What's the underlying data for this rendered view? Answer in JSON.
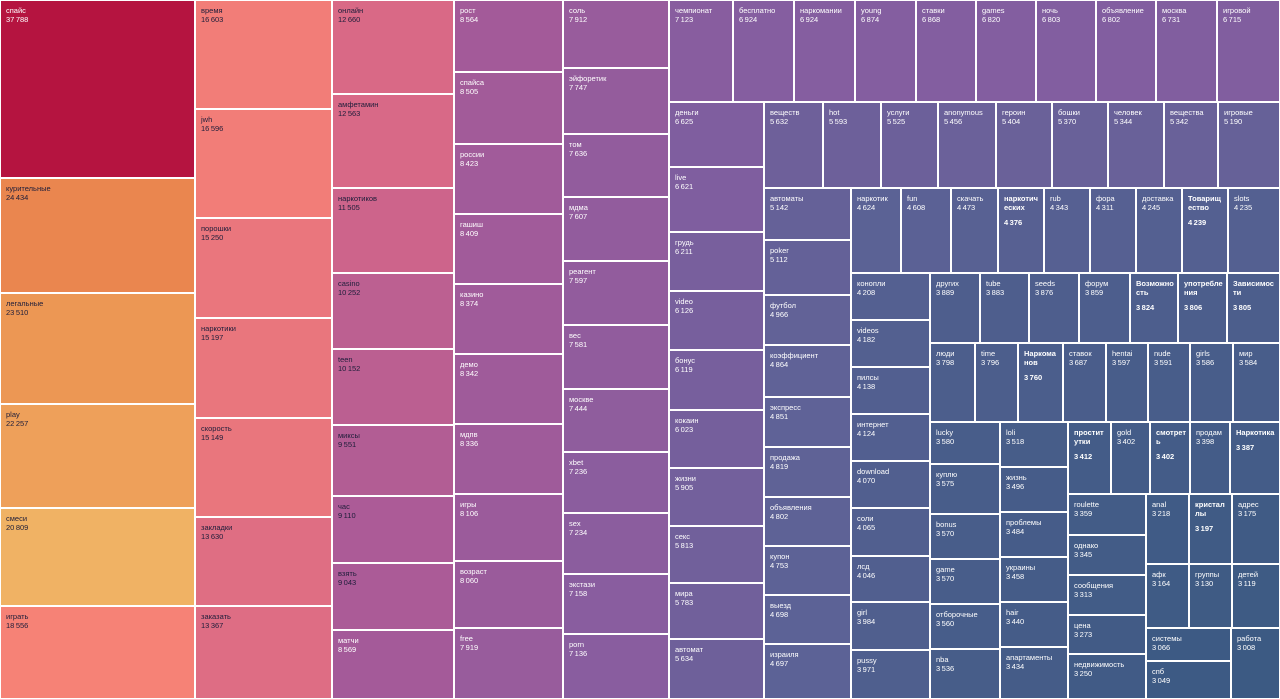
{
  "chart_data": {
    "type": "treemap",
    "title": "",
    "color_scale": {
      "low": "#3c5a83",
      "high": "#b5153f"
    },
    "items": [
      {
        "label": "спайс",
        "value": 37788
      },
      {
        "label": "курительные",
        "value": 24434
      },
      {
        "label": "легальные",
        "value": 23510
      },
      {
        "label": "play",
        "value": 22257
      },
      {
        "label": "смеси",
        "value": 20809
      },
      {
        "label": "играть",
        "value": 18556
      },
      {
        "label": "время",
        "value": 16603
      },
      {
        "label": "jwh",
        "value": 16596
      },
      {
        "label": "порошки",
        "value": 15250
      },
      {
        "label": "наркотики",
        "value": 15197
      },
      {
        "label": "скорость",
        "value": 15149
      },
      {
        "label": "закладки",
        "value": 13630
      },
      {
        "label": "заказать",
        "value": 13367
      },
      {
        "label": "онлайн",
        "value": 12660
      },
      {
        "label": "амфетамин",
        "value": 12563
      },
      {
        "label": "наркотиков",
        "value": 11505
      },
      {
        "label": "casino",
        "value": 10252
      },
      {
        "label": "teen",
        "value": 10152
      },
      {
        "label": "миксы",
        "value": 9551
      },
      {
        "label": "час",
        "value": 9110
      },
      {
        "label": "взять",
        "value": 9043
      },
      {
        "label": "матчи",
        "value": 8569
      },
      {
        "label": "рост",
        "value": 8564
      },
      {
        "label": "спайса",
        "value": 8505
      },
      {
        "label": "россии",
        "value": 8423
      },
      {
        "label": "гашиш",
        "value": 8409
      },
      {
        "label": "казино",
        "value": 8374
      },
      {
        "label": "демо",
        "value": 8342
      },
      {
        "label": "мдпв",
        "value": 8336
      },
      {
        "label": "игры",
        "value": 8106
      },
      {
        "label": "возраст",
        "value": 8060
      },
      {
        "label": "free",
        "value": 7919
      },
      {
        "label": "соль",
        "value": 7912
      },
      {
        "label": "эйфоретик",
        "value": 7747
      },
      {
        "label": "том",
        "value": 7636
      },
      {
        "label": "мдма",
        "value": 7607
      },
      {
        "label": "реагент",
        "value": 7597
      },
      {
        "label": "вес",
        "value": 7581
      },
      {
        "label": "москве",
        "value": 7444
      },
      {
        "label": "xbet",
        "value": 7236
      },
      {
        "label": "sex",
        "value": 7234
      },
      {
        "label": "экстази",
        "value": 7158
      },
      {
        "label": "porn",
        "value": 7136
      },
      {
        "label": "чемпионат",
        "value": 7123
      },
      {
        "label": "бесплатно",
        "value": 6924
      },
      {
        "label": "наркомании",
        "value": 6924
      },
      {
        "label": "young",
        "value": 6874
      },
      {
        "label": "ставки",
        "value": 6868
      },
      {
        "label": "games",
        "value": 6820
      },
      {
        "label": "ночь",
        "value": 6803
      },
      {
        "label": "объявление",
        "value": 6802
      },
      {
        "label": "москва",
        "value": 6731
      },
      {
        "label": "игровой",
        "value": 6715
      },
      {
        "label": "деньги",
        "value": 6625
      },
      {
        "label": "live",
        "value": 6621
      },
      {
        "label": "грудь",
        "value": 6211
      },
      {
        "label": "video",
        "value": 6126
      },
      {
        "label": "бонус",
        "value": 6119
      },
      {
        "label": "кокаин",
        "value": 6023
      },
      {
        "label": "жизни",
        "value": 5905
      },
      {
        "label": "секс",
        "value": 5813
      },
      {
        "label": "мира",
        "value": 5783
      },
      {
        "label": "автомат",
        "value": 5634
      },
      {
        "label": "веществ",
        "value": 5632
      },
      {
        "label": "hot",
        "value": 5593
      },
      {
        "label": "услуги",
        "value": 5525
      },
      {
        "label": "anonymous",
        "value": 5456
      },
      {
        "label": "героин",
        "value": 5404
      },
      {
        "label": "бошки",
        "value": 5370
      },
      {
        "label": "человек",
        "value": 5344
      },
      {
        "label": "вещества",
        "value": 5342
      },
      {
        "label": "игровые",
        "value": 5190
      },
      {
        "label": "автоматы",
        "value": 5142
      },
      {
        "label": "poker",
        "value": 5112
      },
      {
        "label": "футбол",
        "value": 4966
      },
      {
        "label": "коэффициент",
        "value": 4864
      },
      {
        "label": "экспресс",
        "value": 4851
      },
      {
        "label": "продажа",
        "value": 4819
      },
      {
        "label": "объявления",
        "value": 4802
      },
      {
        "label": "купон",
        "value": 4753
      },
      {
        "label": "выезд",
        "value": 4698
      },
      {
        "label": "израиля",
        "value": 4697
      },
      {
        "label": "наркотик",
        "value": 4624
      },
      {
        "label": "fun",
        "value": 4608
      },
      {
        "label": "скачать",
        "value": 4473
      },
      {
        "label": "наркотических",
        "value": 4376
      },
      {
        "label": "rub",
        "value": 4343
      },
      {
        "label": "фора",
        "value": 4311
      },
      {
        "label": "доставка",
        "value": 4245
      },
      {
        "label": "Товарищество",
        "value": 4239
      },
      {
        "label": "slots",
        "value": 4235
      },
      {
        "label": "конопли",
        "value": 4208
      },
      {
        "label": "videos",
        "value": 4182
      },
      {
        "label": "пилсы",
        "value": 4138
      },
      {
        "label": "интернет",
        "value": 4124
      },
      {
        "label": "download",
        "value": 4070
      },
      {
        "label": "соли",
        "value": 4065
      },
      {
        "label": "лсд",
        "value": 4046
      },
      {
        "label": "girl",
        "value": 3984
      },
      {
        "label": "pussy",
        "value": 3971
      },
      {
        "label": "других",
        "value": 3889
      },
      {
        "label": "tube",
        "value": 3883
      },
      {
        "label": "seeds",
        "value": 3876
      },
      {
        "label": "форум",
        "value": 3859
      },
      {
        "label": "Возможность",
        "value": 3824
      },
      {
        "label": "употребления",
        "value": 3806
      },
      {
        "label": "Зависимости",
        "value": 3805
      },
      {
        "label": "люди",
        "value": 3798
      },
      {
        "label": "time",
        "value": 3796
      },
      {
        "label": "Наркоманов",
        "value": 3760
      },
      {
        "label": "ставок",
        "value": 3687
      },
      {
        "label": "hentai",
        "value": 3597
      },
      {
        "label": "nude",
        "value": 3591
      },
      {
        "label": "girls",
        "value": 3586
      },
      {
        "label": "мир",
        "value": 3584
      },
      {
        "label": "lucky",
        "value": 3580
      },
      {
        "label": "куплю",
        "value": 3575
      },
      {
        "label": "bonus",
        "value": 3570
      },
      {
        "label": "game",
        "value": 3570
      },
      {
        "label": "отборочные",
        "value": 3560
      },
      {
        "label": "nba",
        "value": 3536
      },
      {
        "label": "loli",
        "value": 3518
      },
      {
        "label": "жизнь",
        "value": 3496
      },
      {
        "label": "проблемы",
        "value": 3484
      },
      {
        "label": "украины",
        "value": 3458
      },
      {
        "label": "hair",
        "value": 3440
      },
      {
        "label": "апартаменты",
        "value": 3434
      },
      {
        "label": "проститутки",
        "value": 3412
      },
      {
        "label": "gold",
        "value": 3402
      },
      {
        "label": "смотреть",
        "value": 3402
      },
      {
        "label": "продам",
        "value": 3398
      },
      {
        "label": "Наркотика",
        "value": 3387
      },
      {
        "label": "roulette",
        "value": 3359
      },
      {
        "label": "однако",
        "value": 3345
      },
      {
        "label": "сообщения",
        "value": 3313
      },
      {
        "label": "цена",
        "value": 3273
      },
      {
        "label": "недвижимость",
        "value": 3250
      },
      {
        "label": "anal",
        "value": 3218
      },
      {
        "label": "кристаллы",
        "value": 3197
      },
      {
        "label": "адрес",
        "value": 3175
      },
      {
        "label": "афк",
        "value": 3164
      },
      {
        "label": "группы",
        "value": 3130
      },
      {
        "label": "детей",
        "value": 3119
      },
      {
        "label": "системы",
        "value": 3066
      },
      {
        "label": "спб",
        "value": 3049
      },
      {
        "label": "работа",
        "value": 3008
      }
    ]
  }
}
